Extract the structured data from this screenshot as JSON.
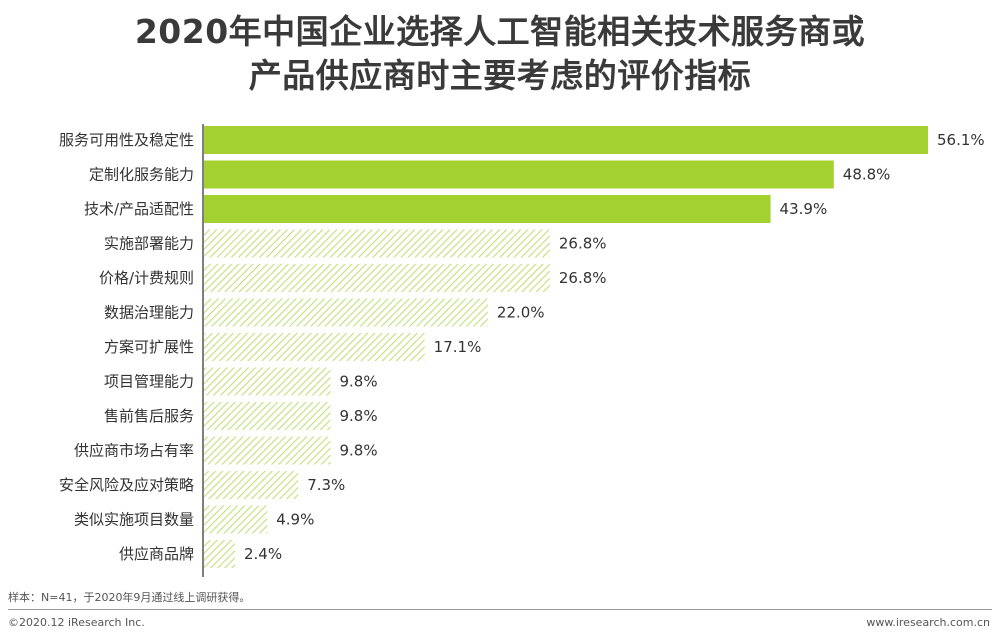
{
  "title_line1": "2020年中国企业选择人工智能相关技术服务商或",
  "title_line2": "产品供应商时主要考虑的评价指标",
  "chart_data": {
    "type": "bar",
    "orientation": "horizontal",
    "categories": [
      "服务可用性及稳定性",
      "定制化服务能力",
      "技术/产品适配性",
      "实施部署能力",
      "价格/计费规则",
      "数据治理能力",
      "方案可扩展性",
      "项目管理能力",
      "售前售后服务",
      "供应商市场占有率",
      "安全风险及应对策略",
      "类似实施项目数量",
      "供应商品牌"
    ],
    "values": [
      56.1,
      48.8,
      43.9,
      26.8,
      26.8,
      22.0,
      17.1,
      9.8,
      9.8,
      9.8,
      7.3,
      4.9,
      2.4
    ],
    "value_labels": [
      "56.1%",
      "48.8%",
      "43.9%",
      "26.8%",
      "26.8%",
      "22.0%",
      "17.1%",
      "9.8%",
      "9.8%",
      "9.8%",
      "7.3%",
      "4.9%",
      "2.4%"
    ],
    "highlight_top": 3,
    "xlim": [
      0,
      56.1
    ],
    "colors": {
      "highlight": "#a3d130",
      "hatch": "#c2e07a",
      "axis": "#555555"
    }
  },
  "footnote": "样本：N=41，于2020年9月通过线上调研获得。",
  "footer_left": "©2020.12 iResearch Inc.",
  "footer_right": "www.iresearch.com.cn"
}
